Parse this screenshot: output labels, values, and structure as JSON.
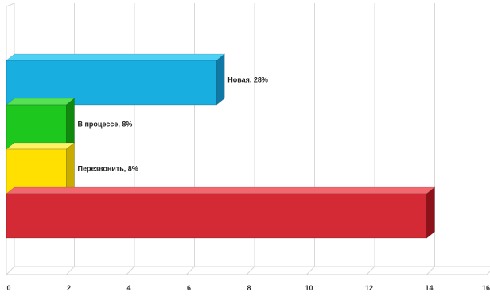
{
  "chart_data": {
    "type": "bar",
    "orientation": "horizontal",
    "style": "3d",
    "title": "",
    "xlabel": "",
    "ylabel": "",
    "xlim": [
      0,
      16
    ],
    "x_ticks": [
      "0",
      "2",
      "4",
      "6",
      "8",
      "10",
      "12",
      "14",
      "16"
    ],
    "grid": true,
    "legend": "none",
    "bars": [
      {
        "label": "Новая, 28%",
        "value": 7,
        "color": "#18afe0",
        "top_color": "#4fd0f4",
        "side_color": "#0e79a6"
      },
      {
        "label": "В процессе, 8%",
        "value": 2,
        "color": "#1ec71e",
        "top_color": "#55e055",
        "side_color": "#0f8a0f"
      },
      {
        "label": "Перезвонить, 8%",
        "value": 2,
        "color": "#ffe000",
        "top_color": "#fff066",
        "side_color": "#c9ac00"
      },
      {
        "label": "",
        "value": 14,
        "color": "#d42a35",
        "top_color": "#f2686f",
        "side_color": "#8c1118"
      }
    ]
  }
}
